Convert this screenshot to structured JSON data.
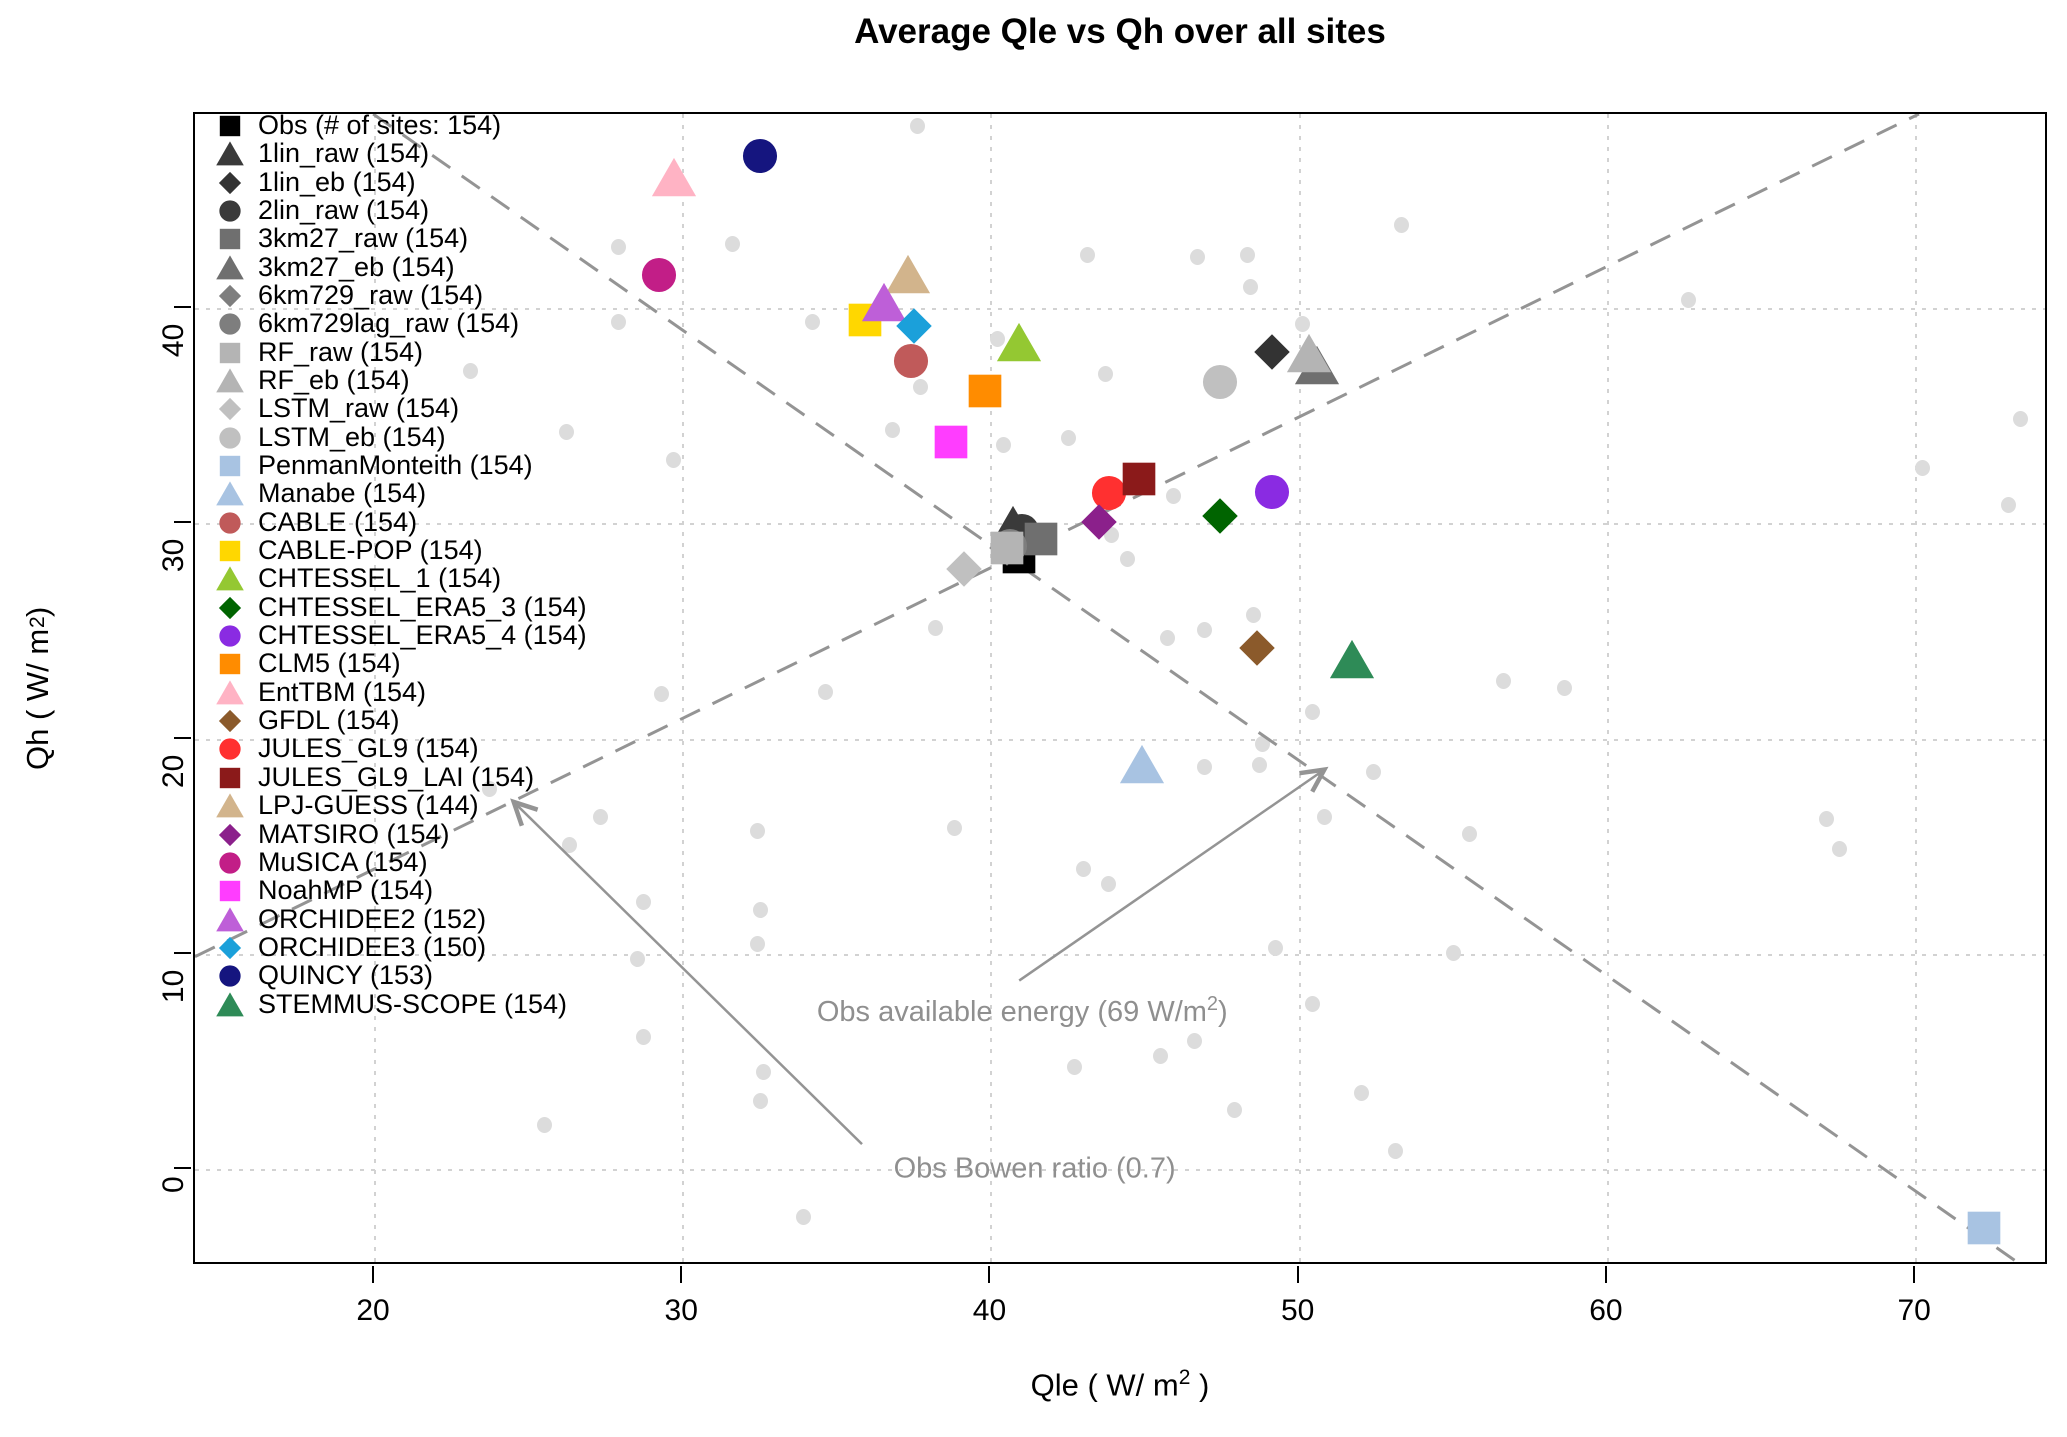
{
  "title": "Average Qle vs Qh over all sites",
  "chart_data": {
    "type": "scatter",
    "title": "Average Qle vs Qh over all sites",
    "xlabel": "Qle  ( W/ m² )",
    "ylabel": "Qh  ( W/ m² )",
    "xlim": [
      14.16,
      74.31
    ],
    "ylim": [
      -4.46,
      49.06
    ],
    "x_ticks": [
      20,
      30,
      40,
      50,
      60,
      70
    ],
    "y_ticks": [
      0,
      10,
      20,
      30,
      40
    ],
    "grid": "dotted",
    "grid_color": "#d2d2d2",
    "legend_position": "top-left-inside",
    "series": [
      {
        "name": "Obs",
        "label": "Obs (# of sites: 154)",
        "count": 154,
        "shape": "square",
        "color": "#000000",
        "x": 40.9,
        "y": 28.5
      },
      {
        "name": "1lin_raw",
        "label": "1lin_raw (154)",
        "count": 154,
        "shape": "triangle",
        "color": "#3a3a3a",
        "x": 40.7,
        "y": 29.9
      },
      {
        "name": "1lin_eb",
        "label": "1lin_eb (154)",
        "count": 154,
        "shape": "diamond",
        "color": "#333333",
        "x": 49.1,
        "y": 38.0
      },
      {
        "name": "2lin_raw",
        "label": "2lin_raw (154)",
        "count": 154,
        "shape": "circle",
        "color": "#3a3a3a",
        "x": 41.0,
        "y": 29.7
      },
      {
        "name": "3km27_raw",
        "label": "3km27_raw (154)",
        "count": 154,
        "shape": "square",
        "color": "#6f6f6f",
        "x": 41.6,
        "y": 29.3
      },
      {
        "name": "3km27_eb",
        "label": "3km27_eb (154)",
        "count": 154,
        "shape": "triangle",
        "color": "#6f6f6f",
        "x": 50.55,
        "y": 37.35
      },
      {
        "name": "6km729_raw",
        "label": "6km729_raw (154)",
        "count": 154,
        "shape": "diamond",
        "color": "#7e7e7e",
        "x": 40.5,
        "y": 28.9
      },
      {
        "name": "6km729lag_raw",
        "label": "6km729lag_raw (154)",
        "count": 154,
        "shape": "circle",
        "color": "#7e7e7e",
        "x": 40.6,
        "y": 29.0
      },
      {
        "name": "RF_raw",
        "label": "RF_raw (154)",
        "count": 154,
        "shape": "square",
        "color": "#b4b4b4",
        "x": 40.5,
        "y": 28.9
      },
      {
        "name": "RF_eb",
        "label": "RF_eb (154)",
        "count": 154,
        "shape": "triangle",
        "color": "#b4b4b4",
        "x": 50.3,
        "y": 37.9
      },
      {
        "name": "LSTM_raw",
        "label": "LSTM_raw (154)",
        "count": 154,
        "shape": "diamond",
        "color": "#c0c0c0",
        "x": 39.1,
        "y": 27.9
      },
      {
        "name": "LSTM_eb",
        "label": "LSTM_eb (154)",
        "count": 154,
        "shape": "circle",
        "color": "#c0c0c0",
        "x": 47.4,
        "y": 36.6
      },
      {
        "name": "PenmanMonteith",
        "label": "PenmanMonteith (154)",
        "count": 154,
        "shape": "square",
        "color": "#a8c3e2",
        "x": 72.2,
        "y": -2.7
      },
      {
        "name": "Manabe",
        "label": "Manabe (154)",
        "count": 154,
        "shape": "triangle",
        "color": "#a8c3e2",
        "x": 44.9,
        "y": 18.8
      },
      {
        "name": "CABLE",
        "label": "CABLE (154)",
        "count": 154,
        "shape": "circle",
        "color": "#c05a5a",
        "x": 37.4,
        "y": 37.6
      },
      {
        "name": "CABLE-POP",
        "label": "CABLE-POP (154)",
        "count": 154,
        "shape": "square",
        "color": "#ffd700",
        "x": 35.9,
        "y": 39.5
      },
      {
        "name": "CHTESSEL_1",
        "label": "CHTESSEL_1 (154)",
        "count": 154,
        "shape": "triangle",
        "color": "#94c832",
        "x": 40.9,
        "y": 38.4
      },
      {
        "name": "CHTESSEL_ERA5_3",
        "label": "CHTESSEL_ERA5_3 (154)",
        "count": 154,
        "shape": "diamond",
        "color": "#006400",
        "x": 47.4,
        "y": 30.4
      },
      {
        "name": "CHTESSEL_ERA5_4",
        "label": "CHTESSEL_ERA5_4 (154)",
        "count": 154,
        "shape": "circle",
        "color": "#8a2be2",
        "x": 49.1,
        "y": 31.5
      },
      {
        "name": "CLM5",
        "label": "CLM5 (154)",
        "count": 154,
        "shape": "square",
        "color": "#ff8c00",
        "x": 39.8,
        "y": 36.2
      },
      {
        "name": "EntTBM",
        "label": "EntTBM (154)",
        "count": 154,
        "shape": "triangle",
        "color": "#ffb3c4",
        "x": 29.7,
        "y": 46.1
      },
      {
        "name": "GFDL",
        "label": "GFDL (154)",
        "count": 154,
        "shape": "diamond",
        "color": "#8b5a2b",
        "x": 48.6,
        "y": 24.25
      },
      {
        "name": "JULES_GL9",
        "label": "JULES_GL9 (154)",
        "count": 154,
        "shape": "circle",
        "color": "#ff3030",
        "x": 43.8,
        "y": 31.45
      },
      {
        "name": "JULES_GL9_LAI",
        "label": "JULES_GL9_LAI (154)",
        "count": 154,
        "shape": "square",
        "color": "#8b1a1a",
        "x": 44.8,
        "y": 32.1
      },
      {
        "name": "LPJ-GUESS",
        "label": "LPJ-GUESS (144)",
        "count": 144,
        "shape": "triangle",
        "color": "#d2b48c",
        "x": 37.3,
        "y": 41.6
      },
      {
        "name": "MATSIRO",
        "label": "MATSIRO (154)",
        "count": 154,
        "shape": "diamond",
        "color": "#8b208b",
        "x": 43.5,
        "y": 30.1
      },
      {
        "name": "MuSICA",
        "label": "MuSICA (154)",
        "count": 154,
        "shape": "circle",
        "color": "#c21e87",
        "x": 29.2,
        "y": 41.6
      },
      {
        "name": "NoahMP",
        "label": "NoahMP (154)",
        "count": 154,
        "shape": "square",
        "color": "#ff3dff",
        "x": 38.7,
        "y": 33.8
      },
      {
        "name": "ORCHIDEE2",
        "label": "ORCHIDEE2 (152)",
        "count": 152,
        "shape": "triangle",
        "color": "#be5fd8",
        "x": 36.5,
        "y": 40.3
      },
      {
        "name": "ORCHIDEE3",
        "label": "ORCHIDEE3 (150)",
        "count": 150,
        "shape": "diamond",
        "color": "#1ba0da",
        "x": 37.5,
        "y": 39.2
      },
      {
        "name": "QUINCY",
        "label": "QUINCY (153)",
        "count": 153,
        "shape": "circle",
        "color": "#15157f",
        "x": 32.5,
        "y": 47.1
      },
      {
        "name": "STEMMUS-SCOPE",
        "label": "STEMMUS-SCOPE (154)",
        "count": 154,
        "shape": "triangle",
        "color": "#2e8b57",
        "x": 51.7,
        "y": 23.7
      }
    ],
    "background_sites": {
      "description": "individual site observations",
      "color": "#dcdcdc",
      "points": [
        [
          37.6,
          48.5
        ],
        [
          27.9,
          42.9
        ],
        [
          31.6,
          43.0
        ],
        [
          43.1,
          42.5
        ],
        [
          46.7,
          42.4
        ],
        [
          48.3,
          42.5
        ],
        [
          53.3,
          43.9
        ],
        [
          62.6,
          40.4
        ],
        [
          27.9,
          39.4
        ],
        [
          34.2,
          39.4
        ],
        [
          40.2,
          38.6
        ],
        [
          48.4,
          41.0
        ],
        [
          50.1,
          39.3
        ],
        [
          23.1,
          37.1
        ],
        [
          26.2,
          34.3
        ],
        [
          29.7,
          33.0
        ],
        [
          36.8,
          34.4
        ],
        [
          40.4,
          33.7
        ],
        [
          42.5,
          34.0
        ],
        [
          43.7,
          37.0
        ],
        [
          37.7,
          36.4
        ],
        [
          73.4,
          34.9
        ],
        [
          70.2,
          32.6
        ],
        [
          73.0,
          30.9
        ],
        [
          45.9,
          31.3
        ],
        [
          44.4,
          28.4
        ],
        [
          43.9,
          29.5
        ],
        [
          38.2,
          25.2
        ],
        [
          45.7,
          24.7
        ],
        [
          48.5,
          25.8
        ],
        [
          46.9,
          25.1
        ],
        [
          56.6,
          22.7
        ],
        [
          58.6,
          22.4
        ],
        [
          50.4,
          21.3
        ],
        [
          48.8,
          19.8
        ],
        [
          46.9,
          18.7
        ],
        [
          48.7,
          18.8
        ],
        [
          52.4,
          18.5
        ],
        [
          50.8,
          16.4
        ],
        [
          55.5,
          15.6
        ],
        [
          67.1,
          16.3
        ],
        [
          67.5,
          14.9
        ],
        [
          29.3,
          22.1
        ],
        [
          34.6,
          22.2
        ],
        [
          23.7,
          17.7
        ],
        [
          27.3,
          16.4
        ],
        [
          26.3,
          15.1
        ],
        [
          28.7,
          12.45
        ],
        [
          28.5,
          9.8
        ],
        [
          28.7,
          6.2
        ],
        [
          32.4,
          15.75
        ],
        [
          38.8,
          15.9
        ],
        [
          32.5,
          12.1
        ],
        [
          32.4,
          10.5
        ],
        [
          43.0,
          14.0
        ],
        [
          43.8,
          13.3
        ],
        [
          49.2,
          10.3
        ],
        [
          55.0,
          10.1
        ],
        [
          50.4,
          7.7
        ],
        [
          46.6,
          6.0
        ],
        [
          45.5,
          5.3
        ],
        [
          52.0,
          3.6
        ],
        [
          47.9,
          2.8
        ],
        [
          53.1,
          0.9
        ],
        [
          42.7,
          4.8
        ],
        [
          32.5,
          3.2
        ],
        [
          33.9,
          -2.2
        ],
        [
          25.5,
          2.1
        ],
        [
          32.6,
          4.55
        ]
      ]
    },
    "reference_lines": [
      {
        "name": "obs-available-energy",
        "equation": "Qle + Qh = 69",
        "style": "dashed",
        "color": "#949494",
        "from": [
          19.94,
          49.06
        ],
        "to": [
          73.46,
          -4.46
        ]
      },
      {
        "name": "obs-bowen-ratio",
        "equation": "Qh = 0.7 x Qle",
        "style": "dashed",
        "color": "#949494",
        "from": [
          14.16,
          9.91
        ],
        "to": [
          70.09,
          49.06
        ]
      }
    ],
    "annotations": [
      {
        "name": "obs-available-energy-label",
        "text": "Obs available energy (69 W/m²)",
        "sup": true,
        "x": 41.0,
        "y": 7.4,
        "arrow_from": [
          40.9,
          8.8
        ],
        "arrow_to": [
          50.8,
          18.6
        ]
      },
      {
        "name": "obs-bowen-ratio-label",
        "text": "Obs Bowen ratio (0.7)",
        "sup": false,
        "x": 41.4,
        "y": 0.05,
        "arrow_from": [
          35.8,
          1.2
        ],
        "arrow_to": [
          24.5,
          17.1
        ]
      }
    ],
    "colors": {
      "grid": "#d2d2d2",
      "dashed_lines": "#949494",
      "annotation_text": "#8f8f8f",
      "background_dots": "#dcdcdc",
      "axis": "#000000"
    }
  }
}
